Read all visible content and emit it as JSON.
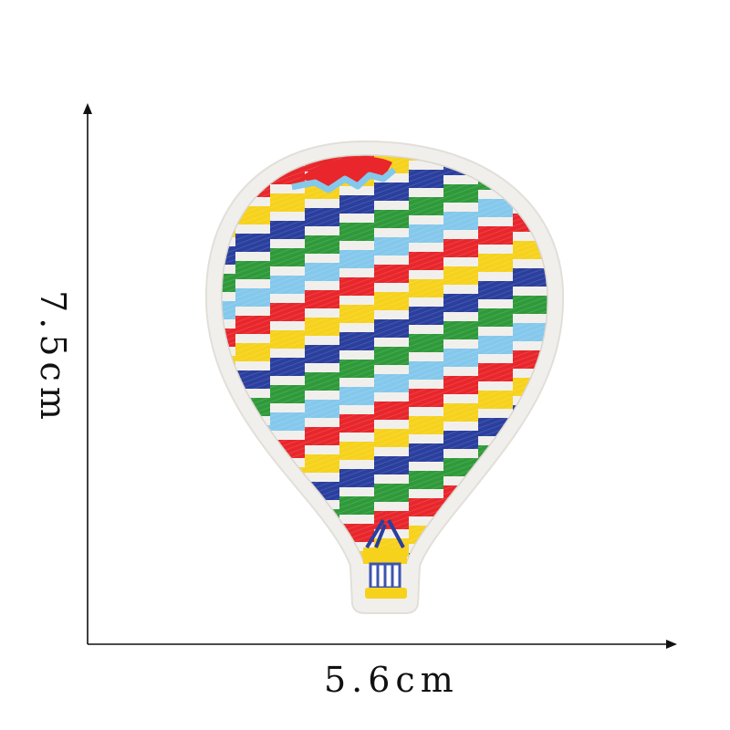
{
  "measurements": {
    "width_label": "5.6cm",
    "height_label": "7.5cm"
  },
  "patch": {
    "subject": "hot-air-balloon",
    "colors": {
      "red": "#e8262b",
      "yellow": "#f6d21c",
      "sky_blue": "#84c8ec",
      "green": "#2f9a3a",
      "blue": "#2a3f9e",
      "border": "#f1efec",
      "basket_blue": "#3c54b0"
    },
    "stripe_order": [
      "blue",
      "green",
      "red",
      "yellow",
      "blue",
      "green",
      "sky_blue",
      "red",
      "yellow",
      "blue",
      "green",
      "sky_blue",
      "red",
      "yellow",
      "blue",
      "green",
      "red",
      "yellow",
      "blue"
    ]
  },
  "axes": {
    "color": "#111111"
  }
}
